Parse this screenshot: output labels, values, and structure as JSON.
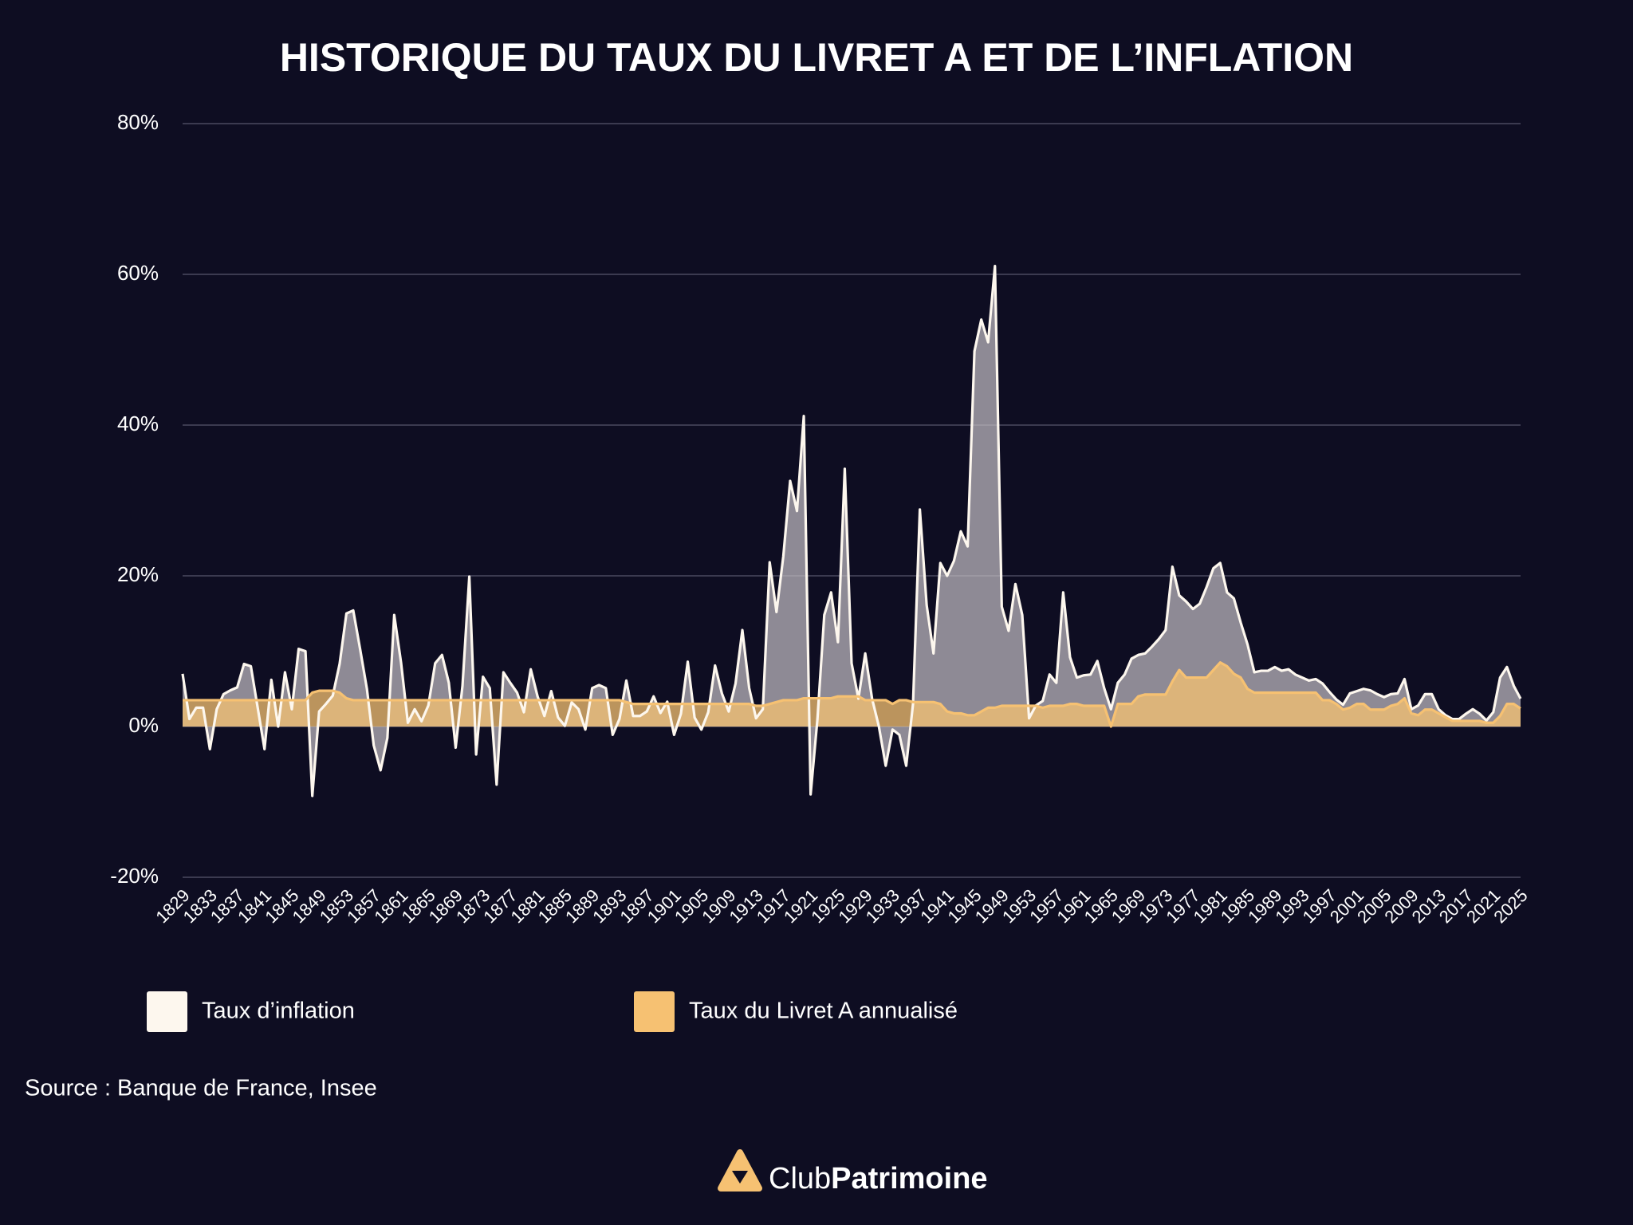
{
  "chart_data": {
    "type": "area",
    "title": "HISTORIQUE DU TAUX DU LIVRET A ET DE L’INFLATION",
    "x": [
      1829,
      1830,
      1831,
      1832,
      1833,
      1834,
      1835,
      1836,
      1837,
      1838,
      1839,
      1840,
      1841,
      1842,
      1843,
      1844,
      1845,
      1846,
      1847,
      1848,
      1849,
      1850,
      1851,
      1852,
      1853,
      1854,
      1855,
      1856,
      1857,
      1858,
      1859,
      1860,
      1861,
      1862,
      1863,
      1864,
      1865,
      1866,
      1867,
      1868,
      1869,
      1870,
      1871,
      1872,
      1873,
      1874,
      1875,
      1876,
      1877,
      1878,
      1879,
      1880,
      1881,
      1882,
      1883,
      1884,
      1885,
      1886,
      1887,
      1888,
      1889,
      1890,
      1891,
      1892,
      1893,
      1894,
      1895,
      1896,
      1897,
      1898,
      1899,
      1900,
      1901,
      1902,
      1903,
      1904,
      1905,
      1906,
      1907,
      1908,
      1909,
      1910,
      1911,
      1912,
      1913,
      1914,
      1915,
      1916,
      1917,
      1918,
      1919,
      1920,
      1921,
      1922,
      1923,
      1924,
      1925,
      1926,
      1927,
      1928,
      1929,
      1930,
      1931,
      1932,
      1933,
      1934,
      1935,
      1936,
      1937,
      1938,
      1939,
      1940,
      1941,
      1942,
      1943,
      1944,
      1945,
      1946,
      1947,
      1948,
      1949,
      1950,
      1951,
      1952,
      1953,
      1954,
      1955,
      1956,
      1957,
      1958,
      1959,
      1960,
      1961,
      1962,
      1963,
      1964,
      1965,
      1966,
      1967,
      1968,
      1969,
      1970,
      1971,
      1972,
      1973,
      1974,
      1975,
      1976,
      1977,
      1978,
      1979,
      1980,
      1981,
      1982,
      1983,
      1984,
      1985,
      1986,
      1987,
      1988,
      1989,
      1990,
      1991,
      1992,
      1993,
      1994,
      1995,
      1996,
      1997,
      1998,
      1999,
      2000,
      2001,
      2002,
      2003,
      2004,
      2005,
      2006,
      2007,
      2008,
      2009,
      2010,
      2011,
      2012,
      2013,
      2014,
      2015,
      2016,
      2017,
      2018,
      2019,
      2020,
      2021,
      2022,
      2023,
      2024,
      2025
    ],
    "series": [
      {
        "name": "Taux d’inflation",
        "color": "#fdf7ee",
        "values": [
          7,
          1,
          2.5,
          2.5,
          -3,
          2.3,
          4.3,
          4.8,
          5.2,
          8.3,
          8,
          2.5,
          -3,
          6.2,
          0,
          7.2,
          2.3,
          10.3,
          10,
          -9.2,
          2,
          3,
          4.1,
          8.3,
          15,
          15.4,
          10.3,
          5,
          -2.5,
          -5.8,
          -1.5,
          14.8,
          8.5,
          0.5,
          2.3,
          0.7,
          2.8,
          8.4,
          9.5,
          5.8,
          -2.8,
          5.4,
          19.9,
          -3.7,
          6.6,
          5.1,
          -7.7,
          7.2,
          5.8,
          4.5,
          1.9,
          7.6,
          4,
          1.4,
          4.7,
          1.2,
          0.1,
          3.2,
          2.3,
          -0.4,
          5.1,
          5.5,
          5.1,
          -1.1,
          1,
          6.1,
          1.4,
          1.4,
          2,
          4,
          1.8,
          3.3,
          -1.1,
          1.7,
          8.6,
          1.2,
          -0.4,
          1.9,
          8.1,
          4.4,
          2,
          5.7,
          12.8,
          5.1,
          1.1,
          2.3,
          21.8,
          15.2,
          22.6,
          32.6,
          28.6,
          41.2,
          -9,
          1,
          14.8,
          17.8,
          11.2,
          34.2,
          8.4,
          3.7,
          9.7,
          3.7,
          0,
          -5.2,
          -0.4,
          -1.1,
          -5.2,
          3,
          28.8,
          16.1,
          9.7,
          21.7,
          20,
          22,
          25.9,
          23.9,
          49.8,
          54,
          51,
          61.1,
          15.9,
          12.7,
          18.9,
          14.8,
          1.1,
          2.8,
          3.4,
          6.9,
          5.8,
          17.8,
          9.2,
          6.5,
          6.8,
          6.9,
          8.7,
          5.1,
          2.3,
          5.8,
          6.9,
          9,
          9.5,
          9.7,
          10.6,
          11.6,
          12.8,
          21.2,
          17.4,
          16.6,
          15.6,
          16.3,
          18.5,
          21,
          21.7,
          17.8,
          17,
          13.8,
          10.9,
          7.2,
          7.4,
          7.4,
          7.9,
          7.4,
          7.6,
          6.9,
          6.5,
          6.1,
          6.3,
          5.7,
          4.6,
          3.6,
          2.9,
          4.4,
          4.7,
          5,
          4.8,
          4.3,
          3.9,
          4.3,
          4.4,
          6.3,
          2.3,
          2.8,
          4.3,
          4.3,
          2.3,
          1.5,
          1,
          1,
          1.7,
          2.3,
          1.7,
          0.8,
          1.9,
          6.5,
          7.9,
          5.4,
          3.7
        ]
      },
      {
        "name": "Taux du Livret A annualisé",
        "color": "#f6c172",
        "values": [
          3.5,
          3.5,
          3.5,
          3.5,
          3.5,
          3.5,
          3.5,
          3.5,
          3.5,
          3.5,
          3.5,
          3.5,
          3.5,
          3.5,
          3.5,
          3.5,
          3.5,
          3.5,
          3.5,
          4.5,
          4.75,
          4.75,
          4.75,
          4.5,
          3.75,
          3.5,
          3.5,
          3.5,
          3.5,
          3.5,
          3.5,
          3.5,
          3.5,
          3.5,
          3.5,
          3.5,
          3.5,
          3.5,
          3.5,
          3.5,
          3.5,
          3.5,
          3.5,
          3.5,
          3.5,
          3.5,
          3.5,
          3.5,
          3.5,
          3.5,
          3.5,
          3.5,
          3.5,
          3.5,
          3.5,
          3.5,
          3.5,
          3.5,
          3.5,
          3.5,
          3.5,
          3.5,
          3.5,
          3.5,
          3.5,
          3.25,
          3,
          3,
          3,
          3,
          3,
          3,
          3,
          3,
          3,
          3,
          3,
          3,
          3,
          3,
          3,
          3,
          3,
          3,
          2.75,
          2.75,
          3,
          3.25,
          3.5,
          3.5,
          3.5,
          3.75,
          3.75,
          3.75,
          3.75,
          3.75,
          4,
          4,
          4,
          4,
          3.5,
          3.5,
          3.5,
          3.5,
          3,
          3.5,
          3.5,
          3.25,
          3.25,
          3.25,
          3.25,
          3,
          2,
          1.75,
          1.75,
          1.5,
          1.5,
          2,
          2.5,
          2.5,
          2.75,
          2.75,
          2.75,
          2.75,
          2.75,
          2.75,
          2.5,
          2.75,
          2.75,
          2.75,
          3,
          3,
          2.75,
          2.75,
          2.75,
          2.75,
          0,
          3,
          3,
          3,
          4,
          4.25,
          4.25,
          4.25,
          4.25,
          6,
          7.5,
          6.5,
          6.5,
          6.5,
          6.5,
          7.5,
          8.5,
          8,
          7,
          6.5,
          5,
          4.5,
          4.5,
          4.5,
          4.5,
          4.5,
          4.5,
          4.5,
          4.5,
          4.5,
          4.5,
          3.5,
          3.5,
          3,
          2.25,
          2.5,
          3,
          3,
          2.25,
          2.25,
          2.25,
          2.75,
          3,
          3.75,
          1.75,
          1.5,
          2.25,
          2.25,
          1.75,
          1.25,
          0.75,
          0.75,
          0.75,
          0.75,
          0.75,
          0.5,
          0.5,
          1.4,
          3,
          3,
          2.4
        ]
      }
    ],
    "xlim": [
      1829,
      2025
    ],
    "xticks": [
      1829,
      1833,
      1837,
      1841,
      1845,
      1849,
      1853,
      1857,
      1861,
      1865,
      1869,
      1873,
      1877,
      1881,
      1885,
      1889,
      1893,
      1897,
      1901,
      1905,
      1909,
      1913,
      1917,
      1921,
      1925,
      1929,
      1933,
      1937,
      1941,
      1945,
      1949,
      1953,
      1957,
      1961,
      1965,
      1969,
      1973,
      1977,
      1981,
      1985,
      1989,
      1993,
      1997,
      2001,
      2005,
      2009,
      2013,
      2017,
      2021,
      2025
    ],
    "ylim": [
      -20,
      80
    ],
    "yticks": [
      {
        "value": -20,
        "label": "-20%"
      },
      {
        "value": 0,
        "label": "0%"
      },
      {
        "value": 20,
        "label": "20%"
      },
      {
        "value": 40,
        "label": "40%"
      },
      {
        "value": 60,
        "label": "60%"
      },
      {
        "value": 80,
        "label": "80%"
      }
    ],
    "grid": true,
    "source": "Source : Banque de France, Insee",
    "brand": {
      "light": "Club",
      "bold": "Patrimoine"
    }
  }
}
